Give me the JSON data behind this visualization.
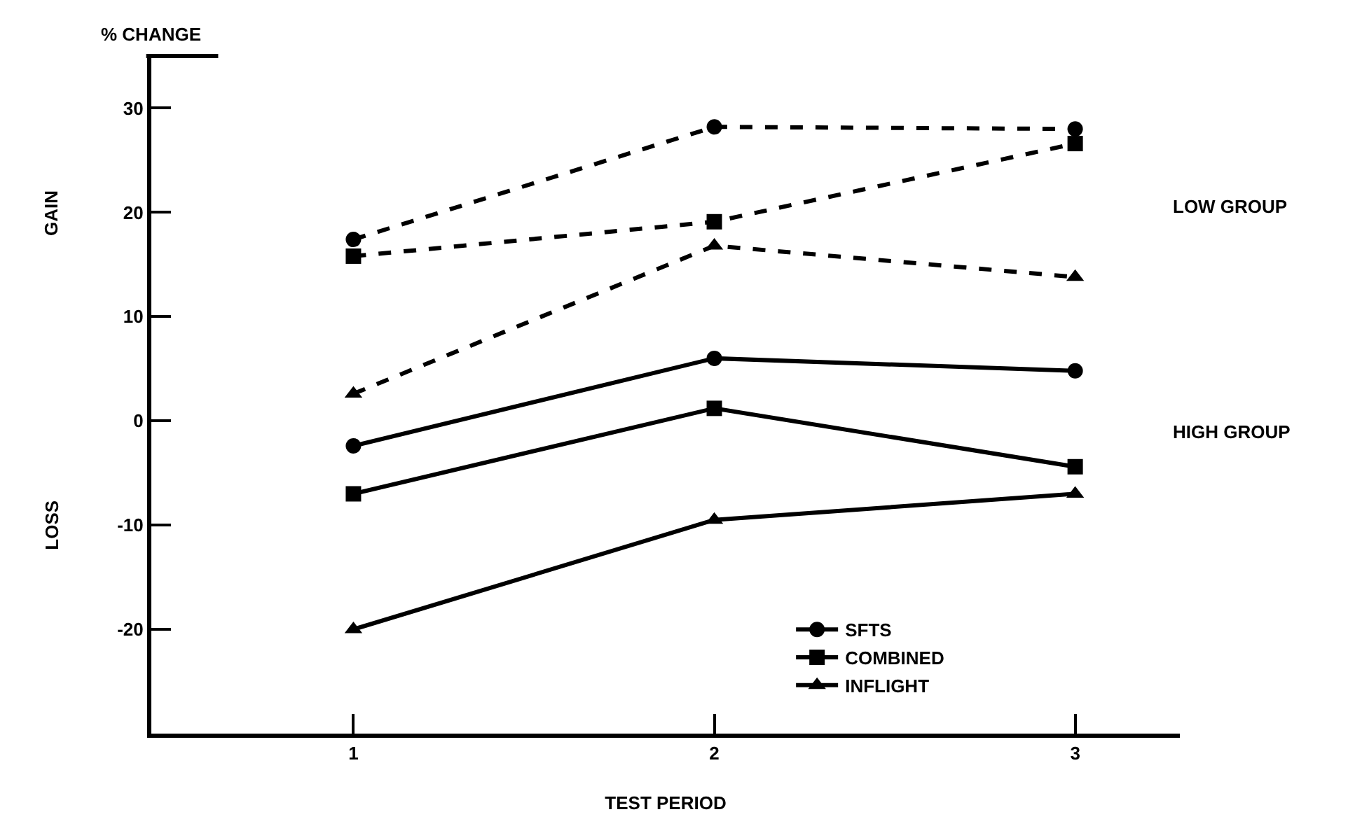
{
  "chart_data": {
    "type": "line",
    "xlabel": "TEST PERIOD",
    "ylabel": "% CHANGE",
    "x": [
      1,
      2,
      3
    ],
    "xlim": [
      0.44,
      3.29
    ],
    "xticks": [
      1,
      2,
      3
    ],
    "ylim": [
      -30,
      35
    ],
    "yticks": [
      -20,
      -10,
      0,
      10,
      20,
      30
    ],
    "legend": "bottom right",
    "series": [
      {
        "color": "#000000",
        "marker": "circle",
        "line_style": "dashed",
        "values": [
          17.4,
          28.2,
          28
        ]
      },
      {
        "color": "#000000",
        "marker": "square",
        "line_style": "dashed",
        "values": [
          15.8,
          19.1,
          26.6
        ]
      },
      {
        "color": "#000000",
        "marker": "triangle",
        "line_style": "dashed",
        "values": [
          2.6,
          16.8,
          13.8
        ]
      },
      {
        "name": "SFTS",
        "color": "#000000",
        "marker": "circle",
        "line_style": "solid",
        "values": [
          -2.4,
          6.0,
          4.8
        ]
      },
      {
        "name": "COMBINED",
        "color": "#000000",
        "marker": "square",
        "line_style": "solid",
        "values": [
          -7,
          1.2,
          -4.4
        ]
      },
      {
        "name": "INFLIGHT",
        "color": "#000000",
        "marker": "triangle",
        "line_style": "solid",
        "values": [
          -20,
          -9.5,
          -7
        ]
      }
    ],
    "annotations": [
      "GAIN",
      "LOSS",
      "LOW GROUP",
      "HIGH GROUP"
    ]
  }
}
